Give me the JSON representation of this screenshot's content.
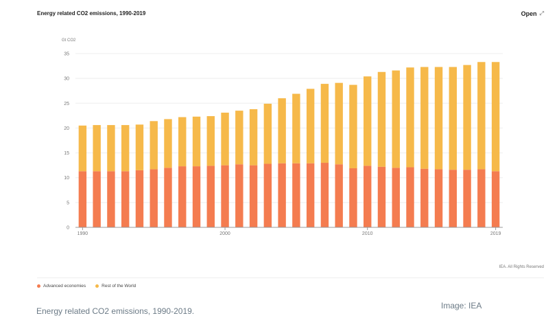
{
  "card": {
    "title": "Energy related CO2 emissions, 1990-2019",
    "open_label": "Open",
    "open_icon": "expand-icon",
    "rights": "IEA. All Rights Reserved"
  },
  "caption": "Energy related CO2 emissions, 1990-2019.",
  "credit": "Image: IEA",
  "colors": {
    "advanced": "#f47c50",
    "rest": "#f6b94a",
    "grid": "#eeeeee",
    "axis": "#999999"
  },
  "chart_data": {
    "type": "bar",
    "stacked": true,
    "title": "Energy related CO2 emissions, 1990-2019",
    "ylabel": "Gt CO2",
    "ylim": [
      0,
      35
    ],
    "yticks": [
      0,
      5,
      10,
      15,
      20,
      25,
      30,
      35
    ],
    "xtick_labels": [
      "1990",
      "2000",
      "2010",
      "2019"
    ],
    "grid": true,
    "legend_position": "bottom-left",
    "categories": [
      1990,
      1991,
      1992,
      1993,
      1994,
      1995,
      1996,
      1997,
      1998,
      1999,
      2000,
      2001,
      2002,
      2003,
      2004,
      2005,
      2006,
      2007,
      2008,
      2009,
      2010,
      2011,
      2012,
      2013,
      2014,
      2015,
      2016,
      2017,
      2018,
      2019
    ],
    "series": [
      {
        "name": "Advanced economies",
        "values": [
          11.3,
          11.3,
          11.3,
          11.3,
          11.5,
          11.7,
          12.0,
          12.3,
          12.3,
          12.4,
          12.5,
          12.7,
          12.5,
          12.8,
          12.9,
          12.9,
          12.9,
          13.0,
          12.7,
          11.9,
          12.4,
          12.2,
          12.0,
          12.1,
          11.8,
          11.7,
          11.6,
          11.6,
          11.7,
          11.3
        ]
      },
      {
        "name": "Rest of the World",
        "values": [
          9.2,
          9.3,
          9.3,
          9.3,
          9.2,
          9.7,
          9.8,
          9.9,
          10.0,
          10.0,
          10.6,
          10.8,
          11.3,
          12.1,
          13.1,
          14.0,
          15.0,
          15.9,
          16.4,
          16.8,
          18.0,
          19.1,
          19.6,
          20.1,
          20.5,
          20.6,
          20.7,
          21.1,
          21.6,
          22.0
        ]
      }
    ]
  }
}
